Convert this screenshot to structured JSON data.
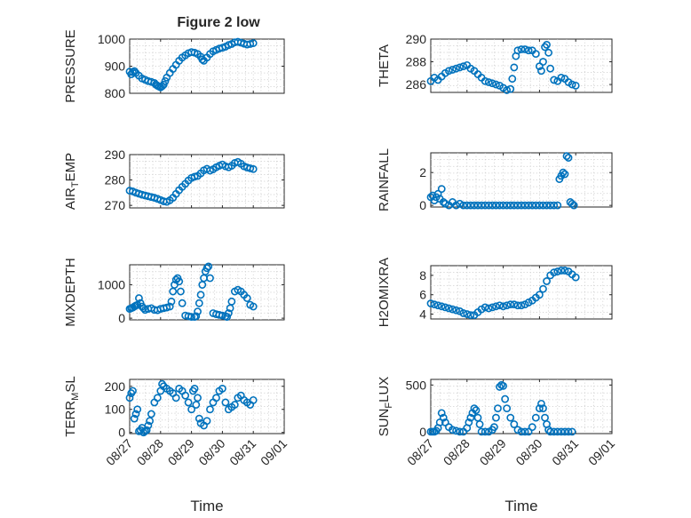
{
  "figure_title": "Figure 2 low",
  "colors": {
    "marker": "#0072BD",
    "axes": "#262626",
    "grid": "#c8c8c8"
  },
  "chart_data": [
    {
      "type": "scatter",
      "title": "Figure 2 low",
      "ylabel": "PRESSURE",
      "ylabel_sub": "",
      "ylabel_sub2": "",
      "xlabel": "",
      "xlim": [
        0,
        5
      ],
      "ylim": [
        800,
        1000
      ],
      "yticks": [
        800,
        900,
        1000
      ],
      "xticks": [
        0,
        1,
        2,
        3,
        4,
        5
      ],
      "xtick_labels": [],
      "grid": true,
      "marker": "circle",
      "x": [
        0.0,
        0.05,
        0.1,
        0.15,
        0.2,
        0.3,
        0.4,
        0.5,
        0.6,
        0.7,
        0.8,
        0.85,
        0.9,
        0.95,
        1.0,
        1.05,
        1.1,
        1.15,
        1.2,
        1.3,
        1.4,
        1.5,
        1.6,
        1.7,
        1.8,
        1.9,
        2.0,
        2.1,
        2.2,
        2.3,
        2.35,
        2.4,
        2.5,
        2.6,
        2.7,
        2.8,
        2.9,
        3.0,
        3.1,
        3.2,
        3.3,
        3.4,
        3.5,
        3.6,
        3.7,
        3.8,
        3.9,
        4.0
      ],
      "y": [
        880,
        870,
        878,
        882,
        875,
        865,
        855,
        850,
        845,
        842,
        838,
        832,
        828,
        825,
        822,
        826,
        832,
        845,
        858,
        875,
        890,
        905,
        920,
        932,
        940,
        948,
        952,
        950,
        945,
        935,
        925,
        920,
        932,
        945,
        955,
        960,
        965,
        968,
        972,
        978,
        982,
        988,
        990,
        987,
        983,
        980,
        982,
        985
      ]
    },
    {
      "type": "scatter",
      "title": "",
      "ylabel": "THETA",
      "ylabel_sub": "",
      "ylabel_sub2": "",
      "xlabel": "",
      "xlim": [
        0,
        5
      ],
      "ylim": [
        285.3,
        290
      ],
      "yticks": [
        286,
        288,
        290
      ],
      "xticks": [
        0,
        1,
        2,
        3,
        4,
        5
      ],
      "xtick_labels": [],
      "grid": true,
      "marker": "circle",
      "x": [
        0.0,
        0.1,
        0.2,
        0.3,
        0.4,
        0.5,
        0.6,
        0.7,
        0.8,
        0.9,
        1.0,
        1.1,
        1.2,
        1.3,
        1.4,
        1.5,
        1.6,
        1.7,
        1.8,
        1.9,
        2.0,
        2.1,
        2.2,
        2.25,
        2.3,
        2.35,
        2.4,
        2.5,
        2.6,
        2.7,
        2.8,
        2.9,
        3.0,
        3.05,
        3.1,
        3.15,
        3.2,
        3.25,
        3.3,
        3.4,
        3.5,
        3.6,
        3.7,
        3.8,
        3.9,
        4.0
      ],
      "y": [
        286.3,
        286.6,
        286.4,
        286.7,
        287.0,
        287.2,
        287.3,
        287.4,
        287.5,
        287.6,
        287.7,
        287.4,
        287.2,
        286.9,
        286.6,
        286.3,
        286.2,
        286.1,
        286.0,
        285.9,
        285.7,
        285.5,
        285.6,
        286.5,
        287.5,
        288.5,
        289.0,
        289.1,
        289.1,
        289.0,
        289.0,
        288.7,
        287.6,
        287.2,
        288.0,
        289.3,
        289.5,
        288.8,
        287.4,
        286.4,
        286.3,
        286.6,
        286.5,
        286.2,
        286.0,
        285.9
      ]
    },
    {
      "type": "scatter",
      "title": "",
      "ylabel": "AIR",
      "ylabel_sub": "T",
      "ylabel_sub2": "EMP",
      "xlabel": "",
      "xlim": [
        0,
        5
      ],
      "ylim": [
        269,
        290
      ],
      "yticks": [
        270,
        280,
        290
      ],
      "xticks": [
        0,
        1,
        2,
        3,
        4,
        5
      ],
      "xtick_labels": [],
      "grid": true,
      "marker": "circle",
      "x": [
        0.0,
        0.1,
        0.2,
        0.3,
        0.4,
        0.5,
        0.6,
        0.7,
        0.8,
        0.9,
        1.0,
        1.1,
        1.2,
        1.3,
        1.4,
        1.5,
        1.6,
        1.7,
        1.8,
        1.9,
        2.0,
        2.1,
        2.2,
        2.3,
        2.4,
        2.5,
        2.6,
        2.7,
        2.8,
        2.9,
        3.0,
        3.1,
        3.2,
        3.3,
        3.4,
        3.5,
        3.6,
        3.7,
        3.8,
        3.9,
        4.0
      ],
      "y": [
        275.8,
        275.5,
        275.0,
        274.6,
        274.2,
        273.9,
        273.6,
        273.3,
        273.0,
        272.6,
        272.1,
        271.6,
        271.4,
        272.0,
        273.0,
        274.5,
        276.0,
        277.3,
        278.5,
        279.8,
        280.8,
        281.3,
        281.6,
        282.6,
        283.8,
        284.4,
        283.7,
        284.2,
        285.0,
        285.6,
        286.1,
        285.4,
        285.0,
        285.6,
        286.7,
        287.1,
        286.4,
        285.4,
        284.9,
        284.6,
        284.3
      ]
    },
    {
      "type": "scatter",
      "title": "",
      "ylabel": "RAINFALL",
      "ylabel_sub": "",
      "ylabel_sub2": "",
      "xlabel": "",
      "xlim": [
        0,
        5
      ],
      "ylim": [
        -0.1,
        3.2
      ],
      "yticks": [
        0,
        2
      ],
      "xticks": [
        0,
        1,
        2,
        3,
        4,
        5
      ],
      "xtick_labels": [],
      "grid": true,
      "marker": "circle",
      "x": [
        0.0,
        0.05,
        0.1,
        0.15,
        0.2,
        0.25,
        0.3,
        0.35,
        0.4,
        0.5,
        0.6,
        0.7,
        0.8,
        0.9,
        1.0,
        1.1,
        1.2,
        1.3,
        1.4,
        1.5,
        1.6,
        1.7,
        1.8,
        1.9,
        2.0,
        2.1,
        2.2,
        2.3,
        2.4,
        2.5,
        2.6,
        2.7,
        2.8,
        2.9,
        3.0,
        3.1,
        3.2,
        3.3,
        3.4,
        3.5,
        3.55,
        3.6,
        3.65,
        3.7,
        3.75,
        3.8,
        3.85,
        3.9,
        3.95
      ],
      "y": [
        0.5,
        0.6,
        0.3,
        0.5,
        0.7,
        0.4,
        1.0,
        0.2,
        0.1,
        0.0,
        0.2,
        0.0,
        0.1,
        0.0,
        0.0,
        0.0,
        0.0,
        0.0,
        0.0,
        0.0,
        0.0,
        0.0,
        0.0,
        0.0,
        0.0,
        0.0,
        0.0,
        0.0,
        0.0,
        0.0,
        0.0,
        0.0,
        0.0,
        0.0,
        0.0,
        0.0,
        0.0,
        0.0,
        0.0,
        0.0,
        1.6,
        1.8,
        2.0,
        1.9,
        3.0,
        2.9,
        0.2,
        0.1,
        0.0
      ]
    },
    {
      "type": "scatter",
      "title": "",
      "ylabel": "MIXDEPTH",
      "ylabel_sub": "",
      "ylabel_sub2": "",
      "xlabel": "",
      "xlim": [
        0,
        5
      ],
      "ylim": [
        -50,
        1600
      ],
      "yticks": [
        0,
        1000
      ],
      "xticks": [
        0,
        1,
        2,
        3,
        4,
        5
      ],
      "xtick_labels": [],
      "grid": true,
      "marker": "circle",
      "x": [
        0.0,
        0.05,
        0.1,
        0.15,
        0.2,
        0.25,
        0.3,
        0.35,
        0.4,
        0.45,
        0.5,
        0.6,
        0.7,
        0.8,
        0.9,
        1.0,
        1.1,
        1.2,
        1.3,
        1.35,
        1.4,
        1.45,
        1.5,
        1.55,
        1.6,
        1.65,
        1.7,
        1.8,
        1.9,
        2.0,
        2.1,
        2.15,
        2.2,
        2.25,
        2.3,
        2.35,
        2.4,
        2.45,
        2.5,
        2.55,
        2.6,
        2.7,
        2.8,
        2.9,
        3.0,
        3.1,
        3.15,
        3.2,
        3.25,
        3.3,
        3.4,
        3.5,
        3.6,
        3.7,
        3.8,
        3.9,
        4.0
      ],
      "y": [
        280,
        300,
        320,
        350,
        380,
        400,
        600,
        450,
        350,
        300,
        250,
        280,
        300,
        250,
        240,
        280,
        300,
        320,
        350,
        500,
        800,
        1000,
        1150,
        1200,
        1100,
        800,
        450,
        80,
        60,
        40,
        40,
        60,
        200,
        450,
        700,
        1000,
        1200,
        1400,
        1500,
        1550,
        1200,
        150,
        120,
        100,
        80,
        60,
        40,
        150,
        300,
        500,
        800,
        850,
        800,
        700,
        600,
        400,
        350
      ]
    },
    {
      "type": "scatter",
      "title": "",
      "ylabel": "H2OMIXRA",
      "ylabel_sub": "",
      "ylabel_sub2": "",
      "xlabel": "",
      "xlim": [
        0,
        5
      ],
      "ylim": [
        3.5,
        9
      ],
      "yticks": [
        4,
        6,
        8
      ],
      "xticks": [
        0,
        1,
        2,
        3,
        4,
        5
      ],
      "xtick_labels": [],
      "grid": true,
      "marker": "circle",
      "x": [
        0.0,
        0.1,
        0.2,
        0.3,
        0.4,
        0.5,
        0.6,
        0.7,
        0.8,
        0.9,
        1.0,
        1.1,
        1.2,
        1.3,
        1.4,
        1.5,
        1.6,
        1.7,
        1.8,
        1.9,
        2.0,
        2.1,
        2.2,
        2.3,
        2.4,
        2.5,
        2.6,
        2.7,
        2.8,
        2.9,
        3.0,
        3.1,
        3.2,
        3.3,
        3.4,
        3.5,
        3.6,
        3.7,
        3.8,
        3.9,
        4.0
      ],
      "y": [
        5.1,
        5.0,
        4.9,
        4.8,
        4.7,
        4.6,
        4.5,
        4.4,
        4.3,
        4.1,
        4.0,
        3.9,
        3.9,
        4.2,
        4.5,
        4.7,
        4.6,
        4.7,
        4.8,
        4.9,
        4.8,
        4.9,
        5.0,
        5.0,
        4.9,
        4.9,
        5.0,
        5.2,
        5.4,
        5.7,
        6.0,
        6.6,
        7.4,
        8.0,
        8.3,
        8.4,
        8.5,
        8.5,
        8.4,
        8.1,
        7.8
      ]
    },
    {
      "type": "scatter",
      "title": "",
      "ylabel": "TERR",
      "ylabel_sub": "M",
      "ylabel_sub2": "SL",
      "xlabel": "Time",
      "xlim": [
        0,
        5
      ],
      "ylim": [
        -5,
        230
      ],
      "yticks": [
        0,
        100,
        200
      ],
      "xticks": [
        0,
        1,
        2,
        3,
        4,
        5
      ],
      "xtick_labels": [
        "08/27",
        "08/28",
        "08/29",
        "08/30",
        "08/31",
        "09/01"
      ],
      "grid": true,
      "marker": "circle",
      "x": [
        0.0,
        0.05,
        0.1,
        0.15,
        0.2,
        0.25,
        0.3,
        0.35,
        0.4,
        0.45,
        0.5,
        0.55,
        0.6,
        0.65,
        0.7,
        0.8,
        0.9,
        1.0,
        1.05,
        1.1,
        1.2,
        1.3,
        1.4,
        1.5,
        1.6,
        1.7,
        1.8,
        1.9,
        2.0,
        2.05,
        2.1,
        2.15,
        2.2,
        2.25,
        2.3,
        2.4,
        2.5,
        2.6,
        2.7,
        2.8,
        2.9,
        3.0,
        3.1,
        3.2,
        3.3,
        3.4,
        3.5,
        3.6,
        3.7,
        3.8,
        3.9,
        4.0
      ],
      "y": [
        150,
        170,
        180,
        60,
        80,
        100,
        5,
        10,
        20,
        0,
        5,
        10,
        30,
        50,
        80,
        130,
        150,
        180,
        210,
        200,
        190,
        180,
        170,
        150,
        190,
        180,
        160,
        130,
        100,
        180,
        190,
        120,
        150,
        60,
        40,
        30,
        50,
        100,
        130,
        150,
        180,
        190,
        130,
        100,
        110,
        120,
        150,
        160,
        140,
        130,
        120,
        140
      ]
    },
    {
      "type": "scatter",
      "title": "",
      "ylabel": "SUN",
      "ylabel_sub": "F",
      "ylabel_sub2": "LUX",
      "xlabel": "Time",
      "xlim": [
        0,
        5
      ],
      "ylim": [
        -20,
        560
      ],
      "yticks": [
        0,
        500
      ],
      "xticks": [
        0,
        1,
        2,
        3,
        4,
        5
      ],
      "xtick_labels": [
        "08/27",
        "08/28",
        "08/29",
        "08/30",
        "08/31",
        "09/01"
      ],
      "grid": true,
      "marker": "circle",
      "x": [
        0.0,
        0.05,
        0.1,
        0.15,
        0.2,
        0.25,
        0.3,
        0.35,
        0.4,
        0.5,
        0.6,
        0.7,
        0.8,
        0.9,
        1.0,
        1.05,
        1.1,
        1.15,
        1.2,
        1.25,
        1.3,
        1.35,
        1.4,
        1.5,
        1.6,
        1.7,
        1.75,
        1.8,
        1.85,
        1.9,
        1.95,
        2.0,
        2.05,
        2.1,
        2.2,
        2.3,
        2.4,
        2.5,
        2.6,
        2.7,
        2.8,
        2.9,
        3.0,
        3.05,
        3.1,
        3.15,
        3.2,
        3.25,
        3.3,
        3.4,
        3.5,
        3.6,
        3.7,
        3.8,
        3.9
      ],
      "y": [
        0,
        0,
        0,
        10,
        40,
        100,
        200,
        150,
        100,
        50,
        20,
        10,
        0,
        0,
        40,
        100,
        150,
        200,
        250,
        230,
        150,
        80,
        0,
        0,
        0,
        20,
        50,
        150,
        250,
        480,
        500,
        490,
        350,
        250,
        150,
        80,
        20,
        0,
        0,
        0,
        50,
        150,
        250,
        300,
        250,
        150,
        80,
        20,
        0,
        0,
        0,
        0,
        0,
        0,
        0
      ]
    }
  ]
}
